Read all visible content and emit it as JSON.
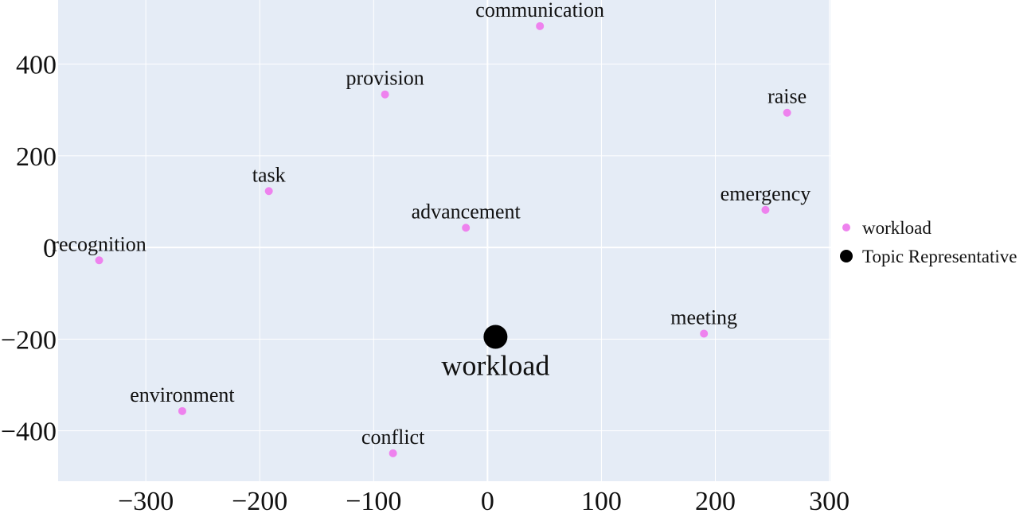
{
  "chart_data": {
    "type": "scatter",
    "title": "",
    "xlabel": "",
    "ylabel": "",
    "xlim": [
      -377,
      301
    ],
    "ylim": [
      -510,
      540
    ],
    "x_ticks": [
      -300,
      -200,
      -100,
      0,
      100,
      200,
      300
    ],
    "y_ticks": [
      -400,
      -200,
      0,
      200,
      400
    ],
    "x_tick_labels": [
      "−300",
      "−200",
      "−100",
      "0",
      "100",
      "200",
      "300"
    ],
    "y_tick_labels": [
      "−400",
      "−200",
      "0",
      "200",
      "400"
    ],
    "grid": true,
    "legend_position": "right",
    "series": [
      {
        "name": "workload",
        "color": "#ee82ee",
        "points": [
          {
            "x": 46,
            "y": 483,
            "label": "communication"
          },
          {
            "x": -90,
            "y": 334,
            "label": "provision"
          },
          {
            "x": 263,
            "y": 294,
            "label": "raise"
          },
          {
            "x": -192,
            "y": 123,
            "label": "task"
          },
          {
            "x": 244,
            "y": 82,
            "label": "emergency"
          },
          {
            "x": -19,
            "y": 43,
            "label": "advancement"
          },
          {
            "x": -341,
            "y": -28,
            "label": "recognition"
          },
          {
            "x": 190,
            "y": -188,
            "label": "meeting"
          },
          {
            "x": -268,
            "y": -357,
            "label": "environment"
          },
          {
            "x": -83,
            "y": -449,
            "label": "conflict"
          }
        ]
      },
      {
        "name": "Topic Representative",
        "color": "#000000",
        "points": [
          {
            "x": 7,
            "y": -195,
            "label": "workload"
          }
        ]
      }
    ]
  }
}
